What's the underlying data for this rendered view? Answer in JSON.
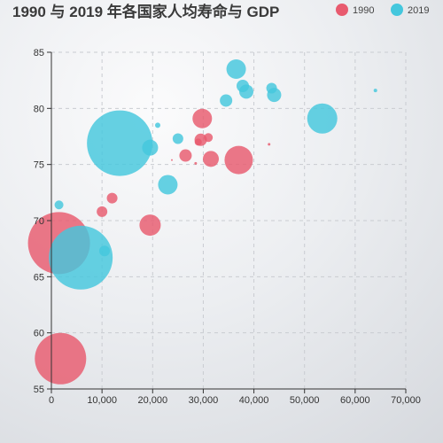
{
  "chart_data": {
    "type": "scatter",
    "title": "1990 与 2019 年各国家人均寿命与 GDP",
    "xlabel": "",
    "ylabel": "",
    "xlim": [
      0,
      70000
    ],
    "ylim": [
      55,
      85
    ],
    "x_ticks": [
      0,
      10000,
      20000,
      30000,
      40000,
      50000,
      60000,
      70000
    ],
    "y_ticks": [
      55,
      60,
      65,
      70,
      75,
      80,
      85
    ],
    "grid": true,
    "legend_position": "top-right",
    "series": [
      {
        "name": "1990",
        "color": "#e85a6e",
        "points": [
          {
            "x": 1500,
            "y": 68.0,
            "size": 35
          },
          {
            "x": 1800,
            "y": 57.7,
            "size": 29
          },
          {
            "x": 10000,
            "y": 70.8,
            "size": 6
          },
          {
            "x": 12000,
            "y": 72.0,
            "size": 6
          },
          {
            "x": 19500,
            "y": 69.6,
            "size": 12
          },
          {
            "x": 23800,
            "y": 75.4,
            "size": 1
          },
          {
            "x": 26500,
            "y": 75.8,
            "size": 7
          },
          {
            "x": 28500,
            "y": 75.1,
            "size": 1.5
          },
          {
            "x": 29000,
            "y": 77.0,
            "size": 4
          },
          {
            "x": 29500,
            "y": 77.2,
            "size": 7
          },
          {
            "x": 29800,
            "y": 79.1,
            "size": 11
          },
          {
            "x": 31000,
            "y": 77.4,
            "size": 5
          },
          {
            "x": 31500,
            "y": 75.5,
            "size": 9
          },
          {
            "x": 37000,
            "y": 75.4,
            "size": 16
          },
          {
            "x": 43000,
            "y": 76.8,
            "size": 1.5
          }
        ]
      },
      {
        "name": "2019",
        "color": "#44c7dd",
        "points": [
          {
            "x": 1500,
            "y": 71.4,
            "size": 5
          },
          {
            "x": 5800,
            "y": 66.7,
            "size": 36
          },
          {
            "x": 10500,
            "y": 67.3,
            "size": 6
          },
          {
            "x": 13500,
            "y": 76.9,
            "size": 37
          },
          {
            "x": 19500,
            "y": 76.5,
            "size": 9
          },
          {
            "x": 21000,
            "y": 78.5,
            "size": 3
          },
          {
            "x": 23000,
            "y": 73.2,
            "size": 11
          },
          {
            "x": 25000,
            "y": 77.3,
            "size": 6
          },
          {
            "x": 34500,
            "y": 80.7,
            "size": 7
          },
          {
            "x": 36500,
            "y": 83.5,
            "size": 11
          },
          {
            "x": 37800,
            "y": 82.0,
            "size": 7
          },
          {
            "x": 38500,
            "y": 81.5,
            "size": 8
          },
          {
            "x": 43500,
            "y": 81.8,
            "size": 6
          },
          {
            "x": 44000,
            "y": 81.2,
            "size": 8
          },
          {
            "x": 53500,
            "y": 79.1,
            "size": 17
          },
          {
            "x": 64000,
            "y": 81.6,
            "size": 2
          }
        ]
      }
    ]
  }
}
